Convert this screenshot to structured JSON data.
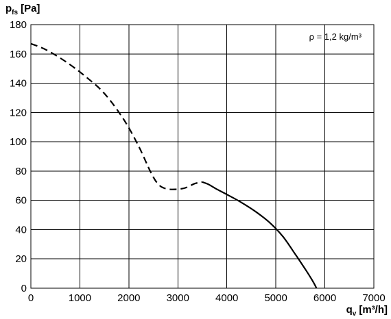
{
  "chart_data": {
    "type": "line",
    "y_axis_title": {
      "main": "p",
      "sub": "fs",
      "unit": "[Pa]"
    },
    "x_axis_title": {
      "main": "q",
      "sub": "v",
      "unit": "[m³/h]"
    },
    "annotation": "ρ = 1,2 kg/m³",
    "xlim": [
      0,
      7000
    ],
    "ylim": [
      0,
      180
    ],
    "x_ticks": [
      0,
      1000,
      2000,
      3000,
      4000,
      5000,
      6000,
      7000
    ],
    "y_ticks": [
      0,
      20,
      40,
      60,
      80,
      100,
      120,
      140,
      160,
      180
    ],
    "grid": true,
    "series": [
      {
        "style": "dashed",
        "x": [
          0,
          300,
          700,
          1100,
          1500,
          1900,
          2200,
          2450,
          2600,
          2750,
          2950,
          3150,
          3350,
          3500
        ],
        "y": [
          167,
          163,
          155,
          145,
          133,
          115,
          97,
          79,
          71,
          68,
          67.5,
          68.5,
          71.5,
          72.5
        ]
      },
      {
        "style": "solid",
        "x": [
          3500,
          3620,
          3800,
          4000,
          4300,
          4600,
          4900,
          5150,
          5400,
          5600,
          5750,
          5830
        ],
        "y": [
          72.5,
          71,
          67.5,
          64,
          58.5,
          52,
          44,
          35,
          23,
          13,
          5,
          0
        ]
      }
    ]
  }
}
